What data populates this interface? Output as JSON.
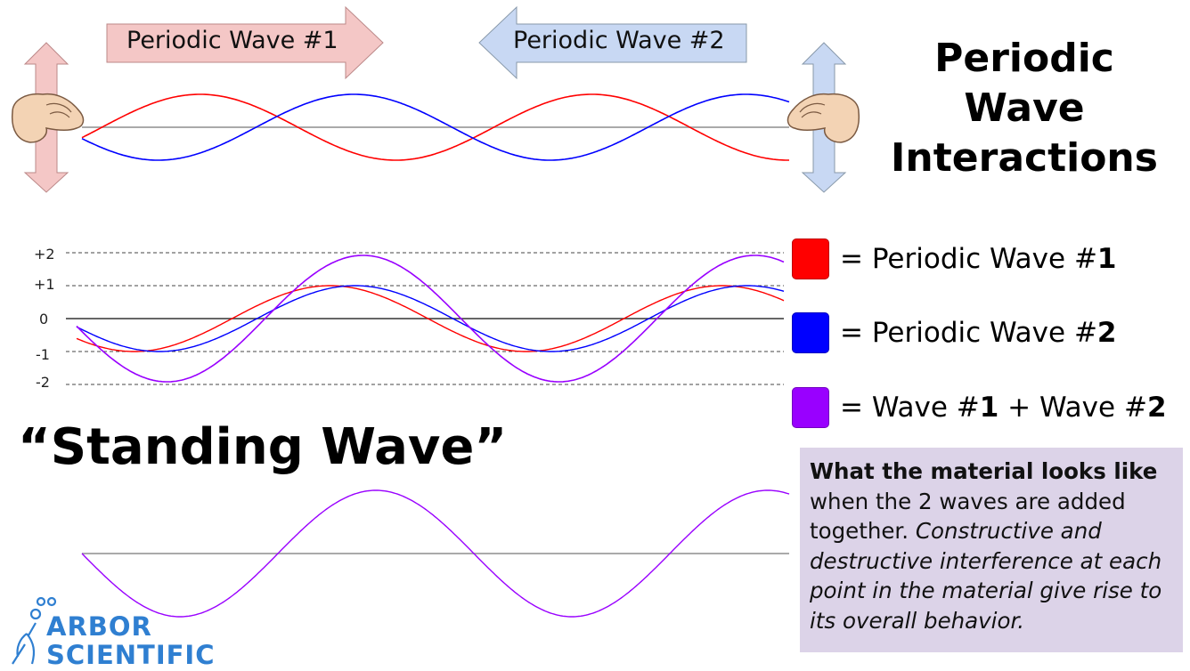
{
  "title": {
    "line1": "Periodic",
    "line2": "Wave",
    "line3": "Interactions"
  },
  "arrows": {
    "wave1_label": "Periodic Wave #1",
    "wave2_label": "Periodic Wave #2",
    "wave1_color": "#f4c7c6",
    "wave2_color": "#c8d8f3"
  },
  "legend": [
    {
      "prefix": "= Periodic Wave #",
      "bold": "1",
      "suffix": "",
      "color": "#ff0000"
    },
    {
      "prefix": "= Periodic Wave #",
      "bold": "2",
      "suffix": "",
      "color": "#0000ff"
    },
    {
      "prefix": "= Wave #",
      "bold": "1",
      "suffix": " + Wave #",
      "bold2": "2",
      "color": "#9900ff"
    }
  ],
  "heading_standing": "“Standing Wave”",
  "note": {
    "bold": "What the material looks like",
    "plain": "when the 2 waves are added together.",
    "italic": "Constructive and destructive interference at each point in the material give rise to its overall behavior."
  },
  "logo": {
    "line1": "ARBOR",
    "line2": "SCIENTIFIC",
    "color": "#2f7fd1"
  },
  "chart_data": {
    "type": "line",
    "ticks": [
      {
        "value": 2,
        "label": "+2"
      },
      {
        "value": 1,
        "label": "+1"
      },
      {
        "value": 0,
        "label": "0"
      },
      {
        "value": -1,
        "label": "-1"
      },
      {
        "value": -2,
        "label": "-2"
      }
    ],
    "ylim": [
      -2,
      2
    ],
    "series": [
      {
        "role": "wave1",
        "color": "#ff0000",
        "amplitude": 1
      },
      {
        "role": "wave2",
        "color": "#0000ff",
        "amplitude": 1
      },
      {
        "role": "sum",
        "color": "#9900ff",
        "amplitude": 2
      }
    ]
  }
}
